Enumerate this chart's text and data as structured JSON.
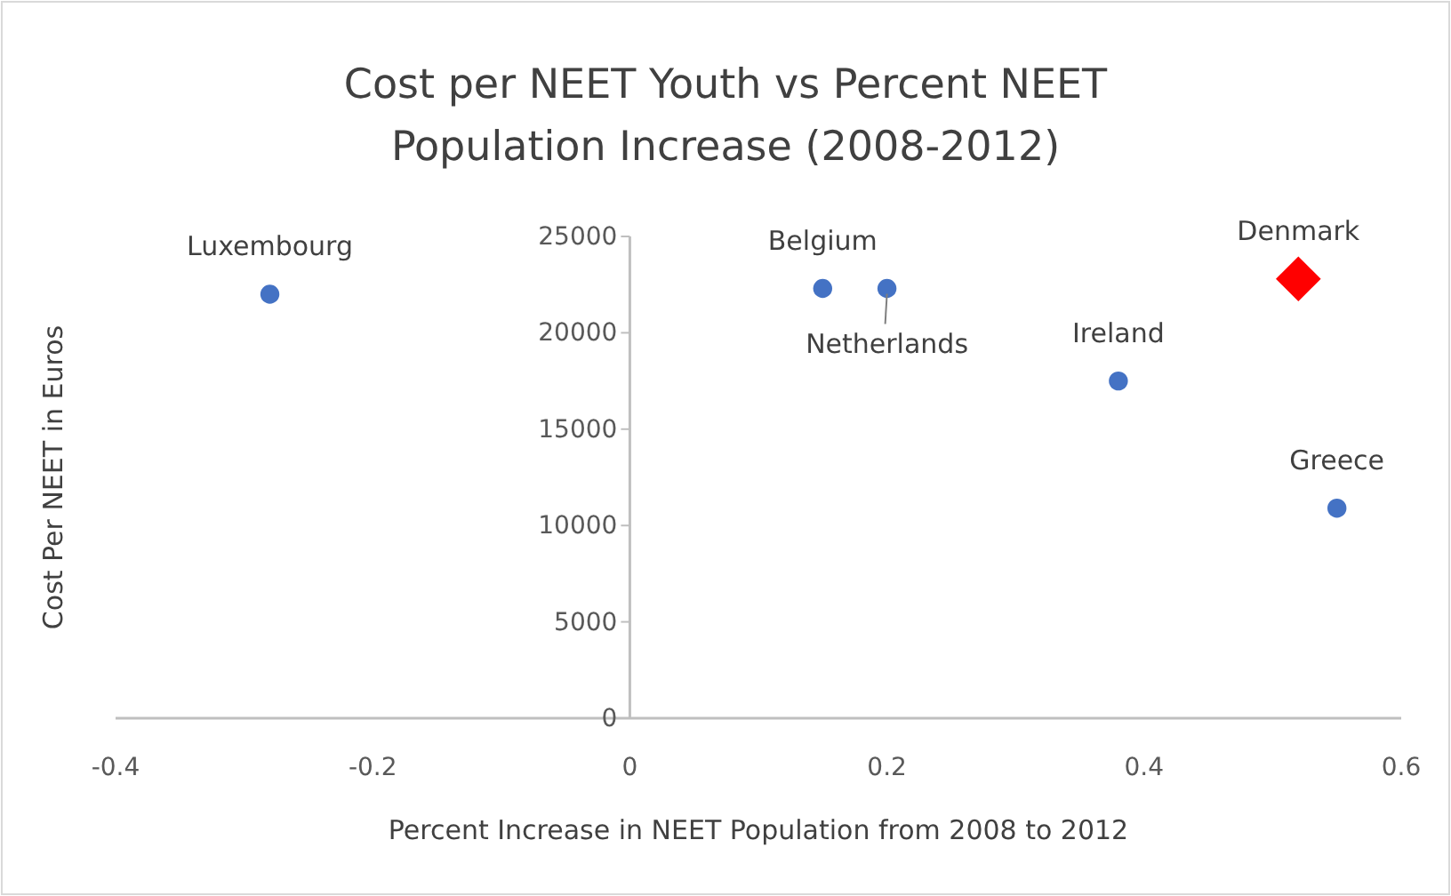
{
  "chart_data": {
    "type": "scatter",
    "title": "Cost per NEET Youth vs Percent NEET Population Increase (2008-2012)",
    "xlabel": "Percent Increase in NEET Population from 2008 to 2012",
    "ylabel": "Cost Per NEET in Euros",
    "xlim": [
      -0.4,
      0.6
    ],
    "xticks": [
      -0.4,
      -0.2,
      0,
      0.2,
      0.4,
      0.6
    ],
    "ylim": [
      0,
      25000
    ],
    "yticks": [
      0,
      5000,
      10000,
      15000,
      20000,
      25000
    ],
    "grid": false,
    "series": [
      {
        "color": "#4472c4",
        "marker": "circle",
        "x": [
          -0.28,
          0.15,
          0.2,
          0.38,
          0.55
        ],
        "values": [
          22000,
          22300,
          22300,
          17500,
          10900
        ]
      },
      {
        "color": "#ff0000",
        "marker": "diamond",
        "x": [
          0.52
        ],
        "values": [
          22800
        ]
      }
    ],
    "annotations": [
      {
        "text": "Luxembourg",
        "x": -0.28,
        "y": 22000
      },
      {
        "text": "Belgium",
        "x": 0.15,
        "y": 22300
      },
      {
        "text": "Netherlands",
        "x": 0.2,
        "y": 22300
      },
      {
        "text": "Ireland",
        "x": 0.38,
        "y": 17500
      },
      {
        "text": "Denmark",
        "x": 0.52,
        "y": 22800
      },
      {
        "text": "Greece",
        "x": 0.55,
        "y": 10900
      }
    ]
  }
}
